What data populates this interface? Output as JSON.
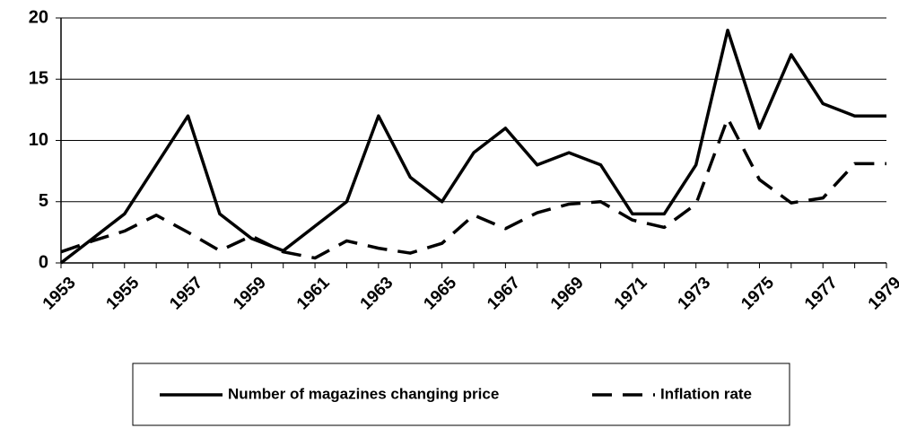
{
  "chart_data": {
    "type": "line",
    "x": [
      1953,
      1954,
      1955,
      1956,
      1957,
      1958,
      1959,
      1960,
      1961,
      1962,
      1963,
      1964,
      1965,
      1966,
      1967,
      1968,
      1969,
      1970,
      1971,
      1972,
      1973,
      1974,
      1975,
      1976,
      1977,
      1978,
      1979
    ],
    "xlim": [
      1953,
      1979
    ],
    "xticks": [
      1953,
      1955,
      1957,
      1959,
      1961,
      1963,
      1965,
      1967,
      1969,
      1971,
      1973,
      1975,
      1977,
      1979
    ],
    "ylim": [
      0,
      20
    ],
    "yticks": [
      0,
      5,
      10,
      15,
      20
    ],
    "grid": true,
    "series": [
      {
        "name": "Number of magazines changing price",
        "color": "#000000",
        "dash": "solid",
        "values": [
          0,
          2,
          4,
          8,
          12,
          4,
          2,
          1,
          3,
          5,
          12,
          7,
          5,
          9,
          11,
          8,
          9,
          8,
          4,
          4,
          8,
          19,
          11,
          17,
          13,
          12,
          12
        ]
      },
      {
        "name": "Inflation rate",
        "color": "#000000",
        "dash": "dashed",
        "values": [
          0.9,
          1.8,
          2.6,
          3.9,
          2.5,
          1.0,
          2.2,
          0.9,
          0.4,
          1.8,
          1.2,
          0.8,
          1.6,
          3.9,
          2.8,
          4.1,
          4.8,
          5.0,
          3.5,
          2.9,
          4.8,
          11.8,
          6.8,
          4.9,
          5.3,
          8.1,
          8.1
        ]
      }
    ]
  }
}
